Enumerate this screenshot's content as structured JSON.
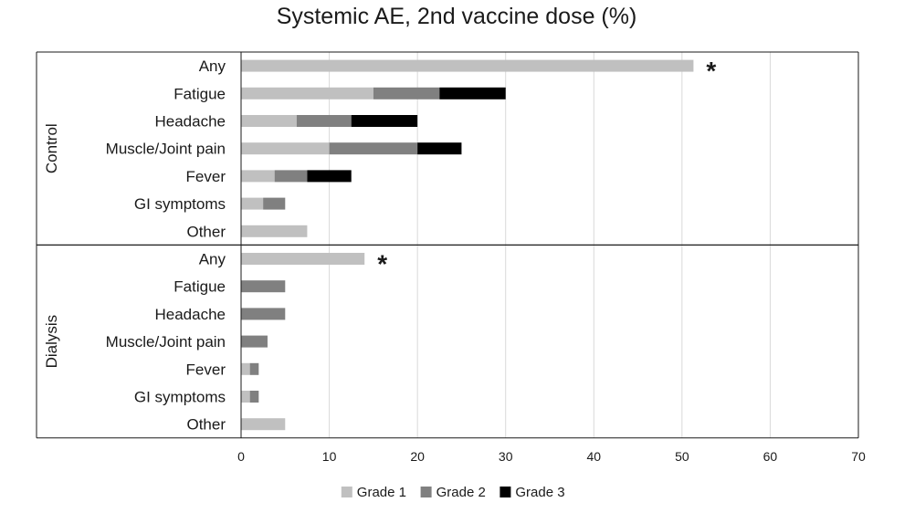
{
  "chart_data": {
    "type": "bar",
    "orientation": "horizontal",
    "stacked": true,
    "title": "Systemic AE, 2nd vaccine dose (%)",
    "xlabel": "",
    "ylabel": "",
    "xlim": [
      0,
      70
    ],
    "xticks": [
      0,
      10,
      20,
      30,
      40,
      50,
      60,
      70
    ],
    "grid": "vertical",
    "legend": {
      "position": "bottom",
      "entries": [
        "Grade 1",
        "Grade 2",
        "Grade 3"
      ]
    },
    "colors": {
      "Grade 1": "#c0c0c0",
      "Grade 2": "#808080",
      "Grade 3": "#000000"
    },
    "groups": [
      {
        "name": "Control",
        "categories": [
          "Any",
          "Fatigue",
          "Headache",
          "Muscle/Joint pain",
          "Fever",
          "GI symptoms",
          "Other"
        ],
        "series": [
          {
            "name": "Grade 1",
            "values": [
              51.3,
              15.0,
              6.3,
              10.0,
              3.8,
              2.5,
              7.5
            ]
          },
          {
            "name": "Grade 2",
            "values": [
              0,
              7.5,
              6.2,
              10.0,
              3.7,
              2.5,
              0
            ]
          },
          {
            "name": "Grade 3",
            "values": [
              0,
              7.5,
              7.5,
              5.0,
              5.0,
              0,
              0
            ]
          }
        ],
        "annotations": [
          {
            "category": "Any",
            "text": "*"
          }
        ]
      },
      {
        "name": "Dialysis",
        "categories": [
          "Any",
          "Fatigue",
          "Headache",
          "Muscle/Joint pain",
          "Fever",
          "GI symptoms",
          "Other"
        ],
        "series": [
          {
            "name": "Grade 1",
            "values": [
              14.0,
              0,
              0,
              0,
              1.0,
              1.0,
              5.0
            ]
          },
          {
            "name": "Grade 2",
            "values": [
              0,
              5.0,
              5.0,
              3.0,
              1.0,
              1.0,
              0
            ]
          },
          {
            "name": "Grade 3",
            "values": [
              0,
              0,
              0,
              0,
              0,
              0,
              0
            ]
          }
        ],
        "annotations": [
          {
            "category": "Any",
            "text": "*"
          }
        ]
      }
    ]
  }
}
